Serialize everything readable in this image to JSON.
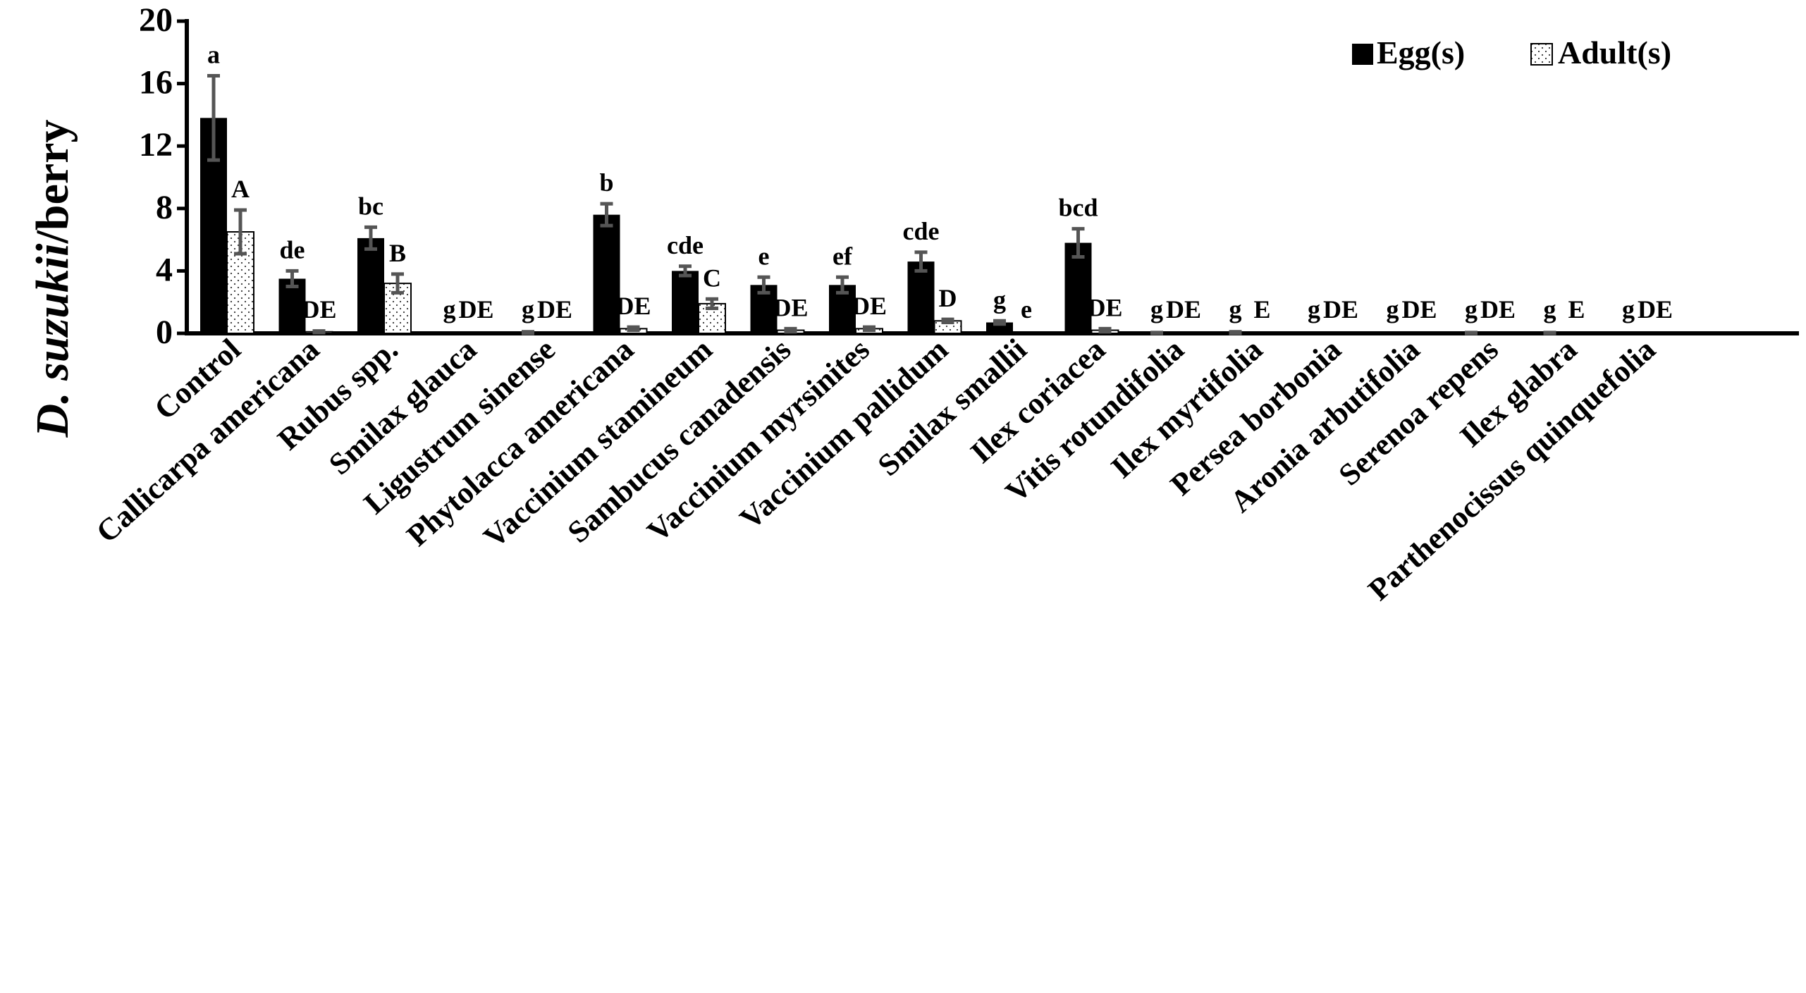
{
  "chart_data": {
    "type": "bar",
    "ylabel_italic": "D. suzukii",
    "ylabel_rest": "/berry",
    "ylim": [
      0,
      20
    ],
    "yticks": [
      "0",
      "4",
      "8",
      "12",
      "16",
      "20"
    ],
    "categories": [
      "Control",
      "Callicarpa americana",
      "Rubus spp.",
      "Smilax glauca",
      "Ligustrum sinense",
      "Phytolacca americana",
      "Vaccinium stamineum",
      "Sambucus canadensis",
      "Vaccinium myrsinites",
      "Vaccinium pallidum",
      "Smilax smallii",
      "Ilex coriacea",
      "Vitis rotundifolia",
      "Ilex myrtifolia",
      "Persea borbonia",
      "Aronia arbutifolia",
      "Serenoa repens",
      "Ilex glabra",
      "Parthenocissus quinquefolia"
    ],
    "series": [
      {
        "name": "Egg(s)",
        "color": "#000000",
        "values": [
          13.8,
          3.5,
          6.1,
          0.0,
          0.0,
          7.6,
          4.0,
          3.1,
          3.1,
          4.6,
          0.7,
          5.8,
          0.0,
          0.0,
          0.0,
          0.0,
          0.0,
          0.0,
          0.0
        ],
        "errors": [
          2.7,
          0.5,
          0.7,
          0.0,
          0.1,
          0.7,
          0.3,
          0.5,
          0.5,
          0.6,
          0.1,
          0.9,
          0.05,
          0.1,
          0.0,
          0.0,
          0.05,
          0.05,
          0.0
        ],
        "letters": [
          "a",
          "de",
          "bc",
          "g",
          "g",
          "b",
          "cde",
          "e",
          "ef",
          "cde",
          "g",
          "bcd",
          "g",
          "g",
          "g",
          "g",
          "g",
          "g",
          "g"
        ]
      },
      {
        "name": "Adult(s)",
        "color": "#ffffff",
        "values": [
          6.5,
          0.1,
          3.2,
          0.0,
          0.0,
          0.3,
          1.9,
          0.2,
          0.3,
          0.8,
          0.0,
          0.2,
          0.0,
          0.0,
          0.0,
          0.0,
          0.0,
          0.0,
          0.0
        ],
        "errors": [
          1.4,
          0.05,
          0.6,
          0.0,
          0.0,
          0.1,
          0.3,
          0.1,
          0.1,
          0.1,
          0.0,
          0.1,
          0.0,
          0.0,
          0.0,
          0.0,
          0.0,
          0.0,
          0.0
        ],
        "letters": [
          "A",
          "DE",
          "B",
          "DE",
          "DE",
          "DE",
          "C",
          "DE",
          "DE",
          "D",
          "e",
          "DE",
          "DE",
          "E",
          "DE",
          "DE",
          "DE",
          "E",
          "DE"
        ]
      }
    ],
    "legend": {
      "position": "top-right"
    }
  }
}
